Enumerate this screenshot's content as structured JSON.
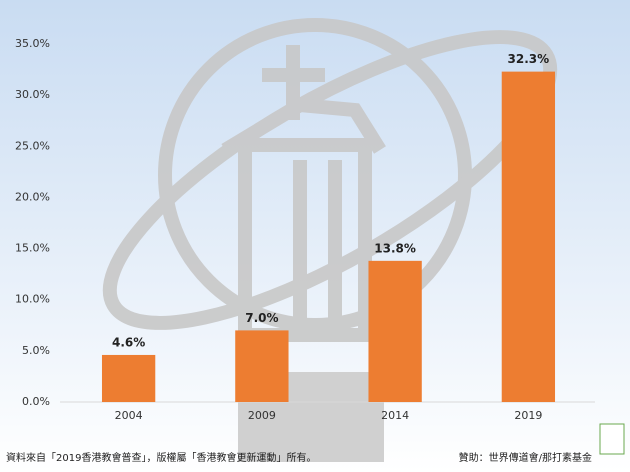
{
  "chart_data": {
    "type": "bar",
    "categories": [
      "2004",
      "2009",
      "2014",
      "2019"
    ],
    "values": [
      4.6,
      7.0,
      13.8,
      32.3
    ],
    "value_labels": [
      "4.6%",
      "7.0%",
      "13.8%",
      "32.3%"
    ],
    "color": "#ed7d31",
    "ylim": [
      0,
      35
    ],
    "yticks": [
      {
        "value": 0,
        "label": "0.0%"
      },
      {
        "value": 5,
        "label": "5.0%"
      },
      {
        "value": 10,
        "label": "10.0%"
      },
      {
        "value": 15,
        "label": "15.0%"
      },
      {
        "value": 20,
        "label": "20.0%"
      },
      {
        "value": 25,
        "label": "25.0%"
      },
      {
        "value": 30,
        "label": "30.0%"
      },
      {
        "value": 35,
        "label": "35.0%"
      }
    ],
    "grid": false,
    "source": "資料來自「2019香港教會普查」，版權屬「香港教會更新運動」所有。",
    "sponsor": "贊助：世界傳道會/那打素基金"
  }
}
